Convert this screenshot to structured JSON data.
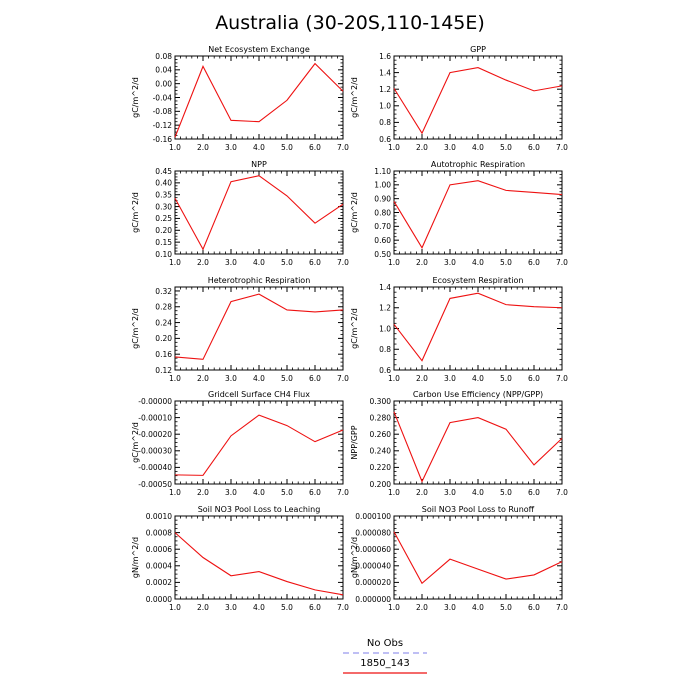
{
  "title": "Australia (30-20S,110-145E)",
  "legend": {
    "entries": [
      {
        "name": "No Obs",
        "color": "#9999ee",
        "dash": true
      },
      {
        "name": "1850_143",
        "color": "#ee1111",
        "dash": false
      }
    ]
  },
  "line_color": "#ee1111",
  "chart_data": [
    {
      "type": "line",
      "title": "Net Ecosystem Exchange",
      "ylabel": "gC/m^2/d",
      "x": [
        1,
        2,
        3,
        4,
        5,
        6,
        7
      ],
      "values": [
        -0.155,
        0.05,
        -0.106,
        -0.11,
        -0.048,
        0.058,
        -0.022
      ],
      "xlim": [
        1,
        7
      ],
      "ylim": [
        -0.16,
        0.08
      ],
      "xticks": [
        1,
        2,
        3,
        4,
        5,
        6,
        7
      ],
      "xtick_labels": [
        "1.0",
        "2.0",
        "3.0",
        "4.0",
        "5.0",
        "6.0",
        "7.0"
      ],
      "yticks": [
        -0.16,
        -0.12,
        -0.08,
        -0.04,
        0,
        0.04,
        0.08
      ],
      "ytick_labels": [
        "-0.16",
        "-0.12",
        "-0.08",
        "-0.04",
        "0.00",
        "0.04",
        "0.08"
      ]
    },
    {
      "type": "line",
      "title": "GPP",
      "ylabel": "gC/m^2/d",
      "x": [
        1,
        2,
        3,
        4,
        5,
        6,
        7
      ],
      "values": [
        1.21,
        0.67,
        1.4,
        1.46,
        1.31,
        1.18,
        1.24
      ],
      "xlim": [
        1,
        7
      ],
      "ylim": [
        0.6,
        1.6
      ],
      "xticks": [
        1,
        2,
        3,
        4,
        5,
        6,
        7
      ],
      "xtick_labels": [
        "1.0",
        "2.0",
        "3.0",
        "4.0",
        "5.0",
        "6.0",
        "7.0"
      ],
      "yticks": [
        0.6,
        0.8,
        1.0,
        1.2,
        1.4,
        1.6
      ],
      "ytick_labels": [
        "0.6",
        "0.8",
        "1.0",
        "1.2",
        "1.4",
        "1.6"
      ]
    },
    {
      "type": "line",
      "title": "NPP",
      "ylabel": "gC/m^2/d",
      "x": [
        1,
        2,
        3,
        4,
        5,
        6,
        7
      ],
      "values": [
        0.335,
        0.12,
        0.405,
        0.43,
        0.345,
        0.23,
        0.31
      ],
      "xlim": [
        1,
        7
      ],
      "ylim": [
        0.1,
        0.45
      ],
      "xticks": [
        1,
        2,
        3,
        4,
        5,
        6,
        7
      ],
      "xtick_labels": [
        "1.0",
        "2.0",
        "3.0",
        "4.0",
        "5.0",
        "6.0",
        "7.0"
      ],
      "yticks": [
        0.1,
        0.15,
        0.2,
        0.25,
        0.3,
        0.35,
        0.4,
        0.45
      ],
      "ytick_labels": [
        "0.10",
        "0.15",
        "0.20",
        "0.25",
        "0.30",
        "0.35",
        "0.40",
        "0.45"
      ]
    },
    {
      "type": "line",
      "title": "Autotrophic Respiration",
      "ylabel": "gC/m^2/d",
      "x": [
        1,
        2,
        3,
        4,
        5,
        6,
        7
      ],
      "values": [
        0.88,
        0.545,
        1.0,
        1.03,
        0.96,
        0.945,
        0.93
      ],
      "xlim": [
        1,
        7
      ],
      "ylim": [
        0.5,
        1.1
      ],
      "xticks": [
        1,
        2,
        3,
        4,
        5,
        6,
        7
      ],
      "xtick_labels": [
        "1.0",
        "2.0",
        "3.0",
        "4.0",
        "5.0",
        "6.0",
        "7.0"
      ],
      "yticks": [
        0.5,
        0.6,
        0.7,
        0.8,
        0.9,
        1.0,
        1.1
      ],
      "ytick_labels": [
        "0.50",
        "0.60",
        "0.70",
        "0.80",
        "0.90",
        "1.00",
        "1.10"
      ]
    },
    {
      "type": "line",
      "title": "Heterotrophic Respiration",
      "ylabel": "gC/m^2/d",
      "x": [
        1,
        2,
        3,
        4,
        5,
        6,
        7
      ],
      "values": [
        0.153,
        0.147,
        0.293,
        0.312,
        0.272,
        0.267,
        0.272
      ],
      "xlim": [
        1,
        7
      ],
      "ylim": [
        0.12,
        0.33
      ],
      "xticks": [
        1,
        2,
        3,
        4,
        5,
        6,
        7
      ],
      "xtick_labels": [
        "1.0",
        "2.0",
        "3.0",
        "4.0",
        "5.0",
        "6.0",
        "7.0"
      ],
      "yticks": [
        0.12,
        0.16,
        0.2,
        0.24,
        0.28,
        0.32
      ],
      "ytick_labels": [
        "0.12",
        "0.16",
        "0.20",
        "0.24",
        "0.28",
        "0.32"
      ]
    },
    {
      "type": "line",
      "title": "Ecosystem Respiration",
      "ylabel": "gC/m^2/d",
      "x": [
        1,
        2,
        3,
        4,
        5,
        6,
        7
      ],
      "values": [
        1.04,
        0.69,
        1.29,
        1.34,
        1.23,
        1.21,
        1.2
      ],
      "xlim": [
        1,
        7
      ],
      "ylim": [
        0.6,
        1.4
      ],
      "xticks": [
        1,
        2,
        3,
        4,
        5,
        6,
        7
      ],
      "xtick_labels": [
        "1.0",
        "2.0",
        "3.0",
        "4.0",
        "5.0",
        "6.0",
        "7.0"
      ],
      "yticks": [
        0.6,
        0.8,
        1.0,
        1.2,
        1.4
      ],
      "ytick_labels": [
        "0.6",
        "0.8",
        "1.0",
        "1.2",
        "1.4"
      ]
    },
    {
      "type": "line",
      "title": "Gridcell Surface CH4 Flux",
      "ylabel": "gC/m^2/d",
      "x": [
        1,
        2,
        3,
        4,
        5,
        6,
        7
      ],
      "values": [
        -0.000445,
        -0.000448,
        -0.00021,
        -8.5e-05,
        -0.000148,
        -0.000245,
        -0.000175
      ],
      "xlim": [
        1,
        7
      ],
      "ylim": [
        -0.0005,
        0
      ],
      "xticks": [
        1,
        2,
        3,
        4,
        5,
        6,
        7
      ],
      "xtick_labels": [
        "1.0",
        "2.0",
        "3.0",
        "4.0",
        "5.0",
        "6.0",
        "7.0"
      ],
      "yticks": [
        -0.0005,
        -0.0004,
        -0.0003,
        -0.0002,
        -0.0001,
        0
      ],
      "ytick_labels": [
        "-0.00050",
        "-0.00040",
        "-0.00030",
        "-0.00020",
        "-0.00010",
        "-0.00000"
      ]
    },
    {
      "type": "line",
      "title": "Carbon Use Efficiency (NPP/GPP)",
      "ylabel": "NPP/GPP",
      "x": [
        1,
        2,
        3,
        4,
        5,
        6,
        7
      ],
      "values": [
        0.287,
        0.203,
        0.274,
        0.28,
        0.266,
        0.223,
        0.255
      ],
      "xlim": [
        1,
        7
      ],
      "ylim": [
        0.2,
        0.3
      ],
      "xticks": [
        1,
        2,
        3,
        4,
        5,
        6,
        7
      ],
      "xtick_labels": [
        "1.0",
        "2.0",
        "3.0",
        "4.0",
        "5.0",
        "6.0",
        "7.0"
      ],
      "yticks": [
        0.2,
        0.22,
        0.24,
        0.26,
        0.28,
        0.3
      ],
      "ytick_labels": [
        "0.200",
        "0.220",
        "0.240",
        "0.260",
        "0.280",
        "0.300"
      ]
    },
    {
      "type": "line",
      "title": "Soil NO3 Pool Loss to Leaching",
      "ylabel": "gN/m^2/d",
      "x": [
        1,
        2,
        3,
        4,
        5,
        6,
        7
      ],
      "values": [
        0.0008,
        0.0005,
        0.00028,
        0.00033,
        0.00021,
        0.00011,
        5e-05
      ],
      "xlim": [
        1,
        7
      ],
      "ylim": [
        0,
        0.001
      ],
      "xticks": [
        1,
        2,
        3,
        4,
        5,
        6,
        7
      ],
      "xtick_labels": [
        "1.0",
        "2.0",
        "3.0",
        "4.0",
        "5.0",
        "6.0",
        "7.0"
      ],
      "yticks": [
        0,
        0.0002,
        0.0004,
        0.0006,
        0.0008,
        0.001
      ],
      "ytick_labels": [
        "0.0000",
        "0.0002",
        "0.0004",
        "0.0006",
        "0.0008",
        "0.0010"
      ]
    },
    {
      "type": "line",
      "title": "Soil NO3 Pool Loss to Runoff",
      "ylabel": "gN/m^2/d",
      "x": [
        1,
        2,
        3,
        4,
        5,
        6,
        7
      ],
      "values": [
        8.1e-05,
        1.9e-05,
        4.8e-05,
        3.6e-05,
        2.4e-05,
        2.9e-05,
        4.5e-05
      ],
      "xlim": [
        1,
        7
      ],
      "ylim": [
        0,
        0.0001
      ],
      "xticks": [
        1,
        2,
        3,
        4,
        5,
        6,
        7
      ],
      "xtick_labels": [
        "1.0",
        "2.0",
        "3.0",
        "4.0",
        "5.0",
        "6.0",
        "7.0"
      ],
      "yticks": [
        0,
        2e-05,
        4e-05,
        6e-05,
        8e-05,
        0.0001
      ],
      "ytick_labels": [
        "0.000000",
        "0.000020",
        "0.000040",
        "0.000060",
        "0.000080",
        "0.000100"
      ]
    }
  ]
}
